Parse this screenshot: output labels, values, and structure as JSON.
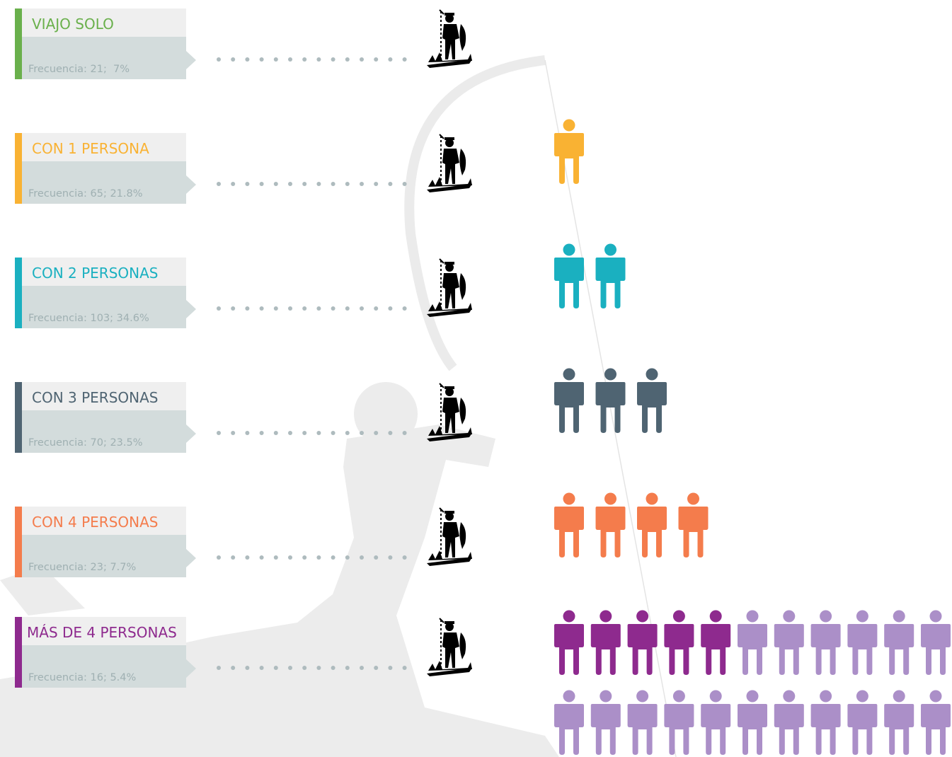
{
  "rows": [
    {
      "title": "VIAJO SOLO",
      "frequency": "Frecuencia: 21;  7%"
    },
    {
      "title": "CON 1 PERSONA",
      "frequency": "Frecuencia: 65; 21.8%"
    },
    {
      "title": "CON 2 PERSONAS",
      "frequency": "Frecuencia: 103; 34.6%"
    },
    {
      "title": "CON 3 PERSONAS",
      "frequency": "Frecuencia: 70; 23.5%"
    },
    {
      "title": "CON 4 PERSONAS",
      "frequency": "Frecuencia: 23; 7.7%"
    },
    {
      "title": "MÁS DE 4 PERSONAS",
      "frequency": "Frecuencia: 16; 5.4%"
    }
  ]
}
